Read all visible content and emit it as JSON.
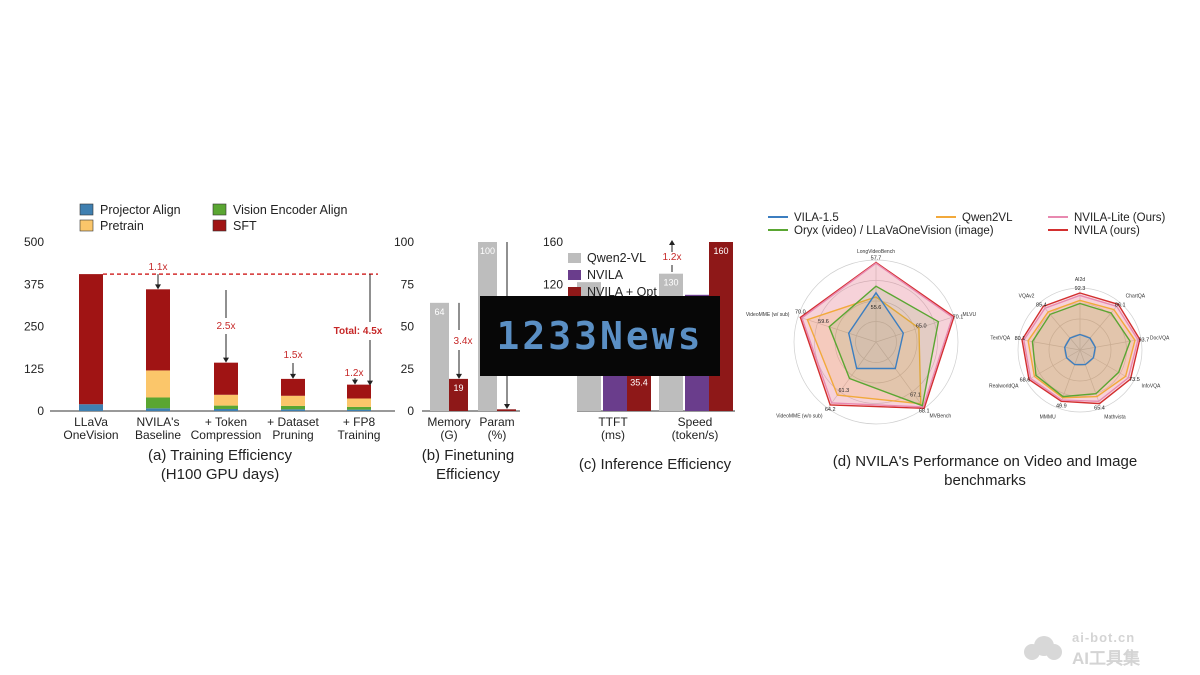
{
  "colors": {
    "projector": "#3f7fb0",
    "pretrain": "#fbc66a",
    "vision": "#5aa632",
    "sft": "#a01414",
    "qwen": "#bdbdbd",
    "nvila": "#6a3d8c",
    "opt": "#8e1818",
    "red": "#d32f2f"
  },
  "panel_a": {
    "legend": [
      "Projector Align",
      "Vision Encoder Align",
      "Pretrain",
      "SFT"
    ],
    "caption_line1": "(a) Training Efficiency",
    "caption_line2": "(H100 GPU days)",
    "total_label": "Total: 4.5x"
  },
  "panel_b": {
    "caption_line1": "(b) Finetuning",
    "caption_line2": "Efficiency",
    "annotation": "3.4x"
  },
  "panel_c": {
    "legend": [
      "Qwen2-VL",
      "NVILA",
      "NVILA + Opt"
    ],
    "caption": "(c) Inference Efficiency",
    "annotation": "1.2x"
  },
  "panel_d": {
    "legend": [
      "VILA-1.5",
      "Qwen2VL",
      "NVILA-Lite (Ours)",
      "Oryx (video) / LLaVaOneVision (image)",
      "NVILA (ours)"
    ],
    "caption_line1": "(d) NVILA's Performance on Video and Image",
    "caption_line2": "benchmarks"
  },
  "watermark": {
    "banner": "1233News",
    "site": "ai-bot.cn",
    "brand": "AI工具集"
  },
  "chart_data": [
    {
      "type": "bar",
      "title": "",
      "ylim": [
        0,
        500
      ],
      "yticks": [
        "0",
        "125",
        "250",
        "375",
        "500"
      ],
      "categories": [
        [
          "LLaVa",
          "OneVision"
        ],
        [
          "NVILA's",
          "Baseline"
        ],
        [
          "+ Token",
          "Compression"
        ],
        [
          "+ Dataset",
          "Pruning"
        ],
        [
          "+ FP8",
          "Training"
        ]
      ],
      "series": [
        {
          "name": "Projector Align",
          "values": [
            20,
            8,
            6,
            5,
            4
          ]
        },
        {
          "name": "Vision Encoder Align",
          "values": [
            0,
            32,
            10,
            10,
            8
          ]
        },
        {
          "name": "Pretrain",
          "values": [
            0,
            80,
            32,
            30,
            25
          ]
        },
        {
          "name": "SFT",
          "values": [
            385,
            240,
            95,
            50,
            41
          ]
        }
      ],
      "annotations": [
        "1.1x",
        "2.5x",
        "1.5x",
        "1.2x",
        "Total: 4.5x"
      ]
    },
    {
      "type": "bar",
      "title": "",
      "ylim": [
        0,
        100
      ],
      "yticks": [
        "0",
        "25",
        "50",
        "75",
        "100"
      ],
      "categories": [
        [
          "Memory",
          "(G)"
        ],
        [
          "Param",
          "(%)"
        ]
      ],
      "series": [
        {
          "name": "Qwen2-VL",
          "values": [
            64,
            100
          ]
        },
        {
          "name": "NVILA",
          "values": [
            19,
            1
          ]
        }
      ],
      "data_labels": [
        [
          "64",
          "19"
        ],
        [
          "100",
          ""
        ]
      ]
    },
    {
      "type": "bar",
      "title": "",
      "ylim": [
        0,
        160
      ],
      "yticks": [
        "0",
        "40",
        "80",
        "120",
        "160"
      ],
      "categories": [
        [
          "TTFT",
          "(ms)"
        ],
        [
          "Speed",
          "(token/s)"
        ]
      ],
      "series": [
        {
          "name": "Qwen2-VL",
          "values": [
            122,
            130
          ]
        },
        {
          "name": "NVILA",
          "values": [
            60,
            110
          ]
        },
        {
          "name": "NVILA + Opt",
          "values": [
            35.4,
            160
          ]
        }
      ],
      "data_labels": [
        [
          "",
          "",
          "35.4"
        ],
        [
          "130",
          "",
          "160"
        ]
      ]
    },
    {
      "type": "radar",
      "title": "",
      "axes": [
        "LongVideoBench",
        "MLVU",
        "MVBench",
        "VideoMME (w/o sub)",
        "VideoMME (w/ sub)"
      ],
      "series": [
        {
          "name": "VILA-1.5",
          "values": [
            0.6,
            0.35,
            0.4,
            0.4,
            0.35
          ]
        },
        {
          "name": "Oryx (video) / LLaVaOneVision (image)",
          "values": [
            0.68,
            0.8,
            0.96,
            0.55,
            0.6
          ]
        },
        {
          "name": "Qwen2VL",
          "values": [
            0.55,
            0.55,
            0.93,
            0.8,
            0.88
          ]
        },
        {
          "name": "NVILA-Lite (Ours)",
          "values": [
            0.96,
            0.98,
            0.98,
            0.92,
            0.95
          ]
        },
        {
          "name": "NVILA (ours)",
          "values": [
            0.97,
            1.0,
            1.0,
            0.95,
            0.97
          ]
        }
      ],
      "value_labels": [
        "57.7",
        "70.1",
        "68.1",
        "64.2",
        "70.0",
        "55.6",
        "65.0",
        "67.1",
        "61.3",
        "59.6"
      ]
    },
    {
      "type": "radar",
      "title": "",
      "axes": [
        "AI2d",
        "ChartQA",
        "DocVQA",
        "InfoVQA",
        "Mathvista",
        "MMMU",
        "RealworldQA",
        "TextVQA",
        "VQAv2"
      ],
      "series": [
        {
          "name": "VILA-1.5",
          "values": [
            0.25,
            0.25,
            0.25,
            0.25,
            0.25,
            0.25,
            0.25,
            0.25,
            0.25
          ]
        },
        {
          "name": "Oryx (video) / LLaVaOneVision (image)",
          "values": [
            0.75,
            0.78,
            0.82,
            0.72,
            0.75,
            0.8,
            0.82,
            0.78,
            0.75
          ]
        },
        {
          "name": "Qwen2VL",
          "values": [
            0.8,
            0.85,
            0.9,
            0.85,
            0.8,
            0.82,
            0.85,
            0.85,
            0.8
          ]
        },
        {
          "name": "NVILA-Lite (Ours)",
          "values": [
            0.88,
            0.92,
            0.95,
            0.9,
            0.88,
            0.86,
            0.92,
            0.92,
            0.88
          ]
        },
        {
          "name": "NVILA (ours)",
          "values": [
            0.92,
            0.96,
            0.98,
            0.94,
            0.92,
            0.88,
            0.95,
            0.95,
            0.92
          ]
        }
      ],
      "value_labels": [
        "92.3",
        "86.1",
        "93.7",
        "73.5",
        "65.4",
        "49.9",
        "68.6",
        "80.1",
        "85.4"
      ]
    }
  ]
}
